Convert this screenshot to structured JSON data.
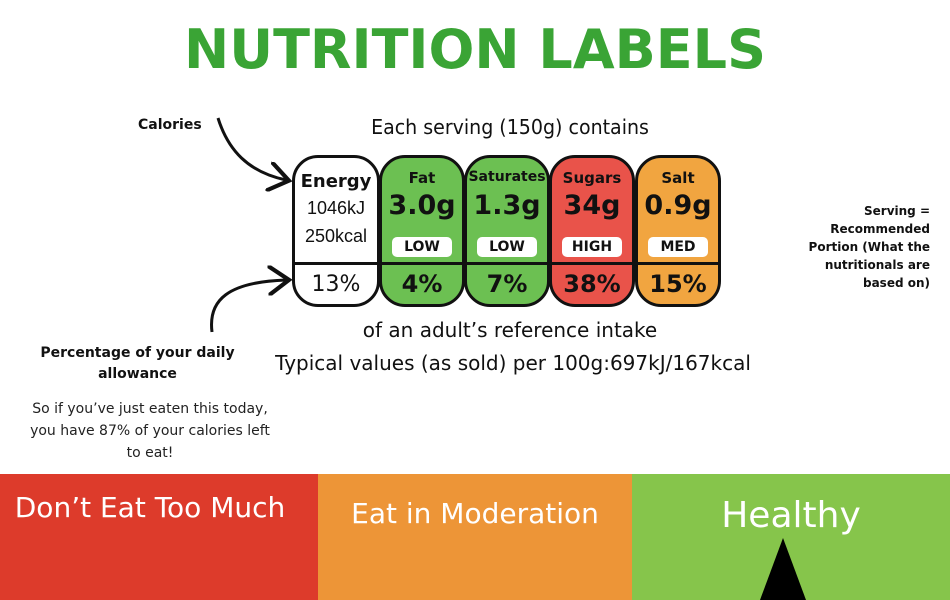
{
  "title": "NUTRITION LABELS",
  "label": {
    "heading": "Each serving (150g) contains",
    "energy": {
      "name": "Energy",
      "kj": "1046kJ",
      "kcal": "250kcal",
      "percent": "13%"
    },
    "nutrients": [
      {
        "name": "Fat",
        "value": "3.0g",
        "level": "LOW",
        "percent": "4%",
        "color": "#6cc052"
      },
      {
        "name": "Saturates",
        "value": "1.3g",
        "level": "LOW",
        "percent": "7%",
        "color": "#6cc052"
      },
      {
        "name": "Sugars",
        "value": "34g",
        "level": "HIGH",
        "percent": "38%",
        "color": "#e9534a"
      },
      {
        "name": "Salt",
        "value": "0.9g",
        "level": "MED",
        "percent": "15%",
        "color": "#f1a540"
      }
    ],
    "reference_line": "of an adult’s reference intake",
    "typical_line": "Typical values (as sold) per 100g:697kJ/167kcal"
  },
  "annotations": {
    "calories": "Calories",
    "percentage_title": "Percentage of your daily allowance",
    "percentage_desc": "So if you’ve just eaten this today, you have 87% of your calories left to eat!",
    "serving_note": "Serving = Recommended Portion (What the nutritionals are based on)"
  },
  "scale": {
    "red": "Don’t Eat Too Much",
    "orange": "Eat in Moderation",
    "green": "Healthy",
    "colors": {
      "red": "#dd3b2b",
      "orange": "#ed9537",
      "green": "#86c54b"
    }
  },
  "colors": {
    "title": "#3aa435"
  }
}
